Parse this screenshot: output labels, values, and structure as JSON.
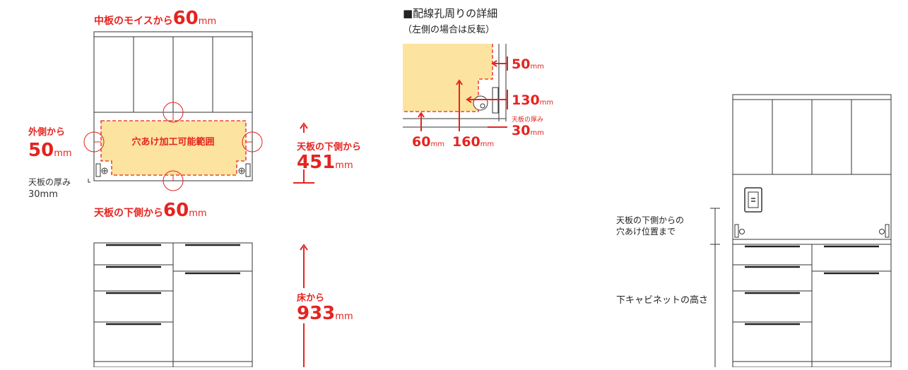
{
  "colors": {
    "accent": "#e52420",
    "area_fill": "#fce3a0",
    "line": "#333333",
    "text": "#222222"
  },
  "main_diagram": {
    "top_label": "中板のモイスから",
    "top_value": "60",
    "side_label": "外側から",
    "side_value": "50",
    "area_label": "穴あけ加工可能範囲",
    "bottom_label": "天板の下側から",
    "bottom_value": "60",
    "thickness_label": "天板の厚み",
    "thickness_value": "30mm",
    "height_label": "天板の下側から",
    "height_value": "451",
    "floor_label": "床から",
    "floor_value": "933",
    "unit": "mm"
  },
  "detail": {
    "title": "■配線孔周りの詳細",
    "subtitle": "（左側の場合は反転）",
    "dim_50": "50",
    "dim_130": "130",
    "thickness_label": "天板の厚み",
    "dim_30": "30",
    "dim_60": "60",
    "dim_160": "160",
    "unit": "mm"
  },
  "right_diagram": {
    "label_position_line1": "天板の下側からの",
    "label_position_line2": "穴あけ位置まで",
    "label_cabinet_height": "下キャビネットの高さ"
  },
  "icons": [
    "outlet-icon",
    "screw-icon",
    "cable-hole-icon",
    "arrow-up-icon"
  ]
}
